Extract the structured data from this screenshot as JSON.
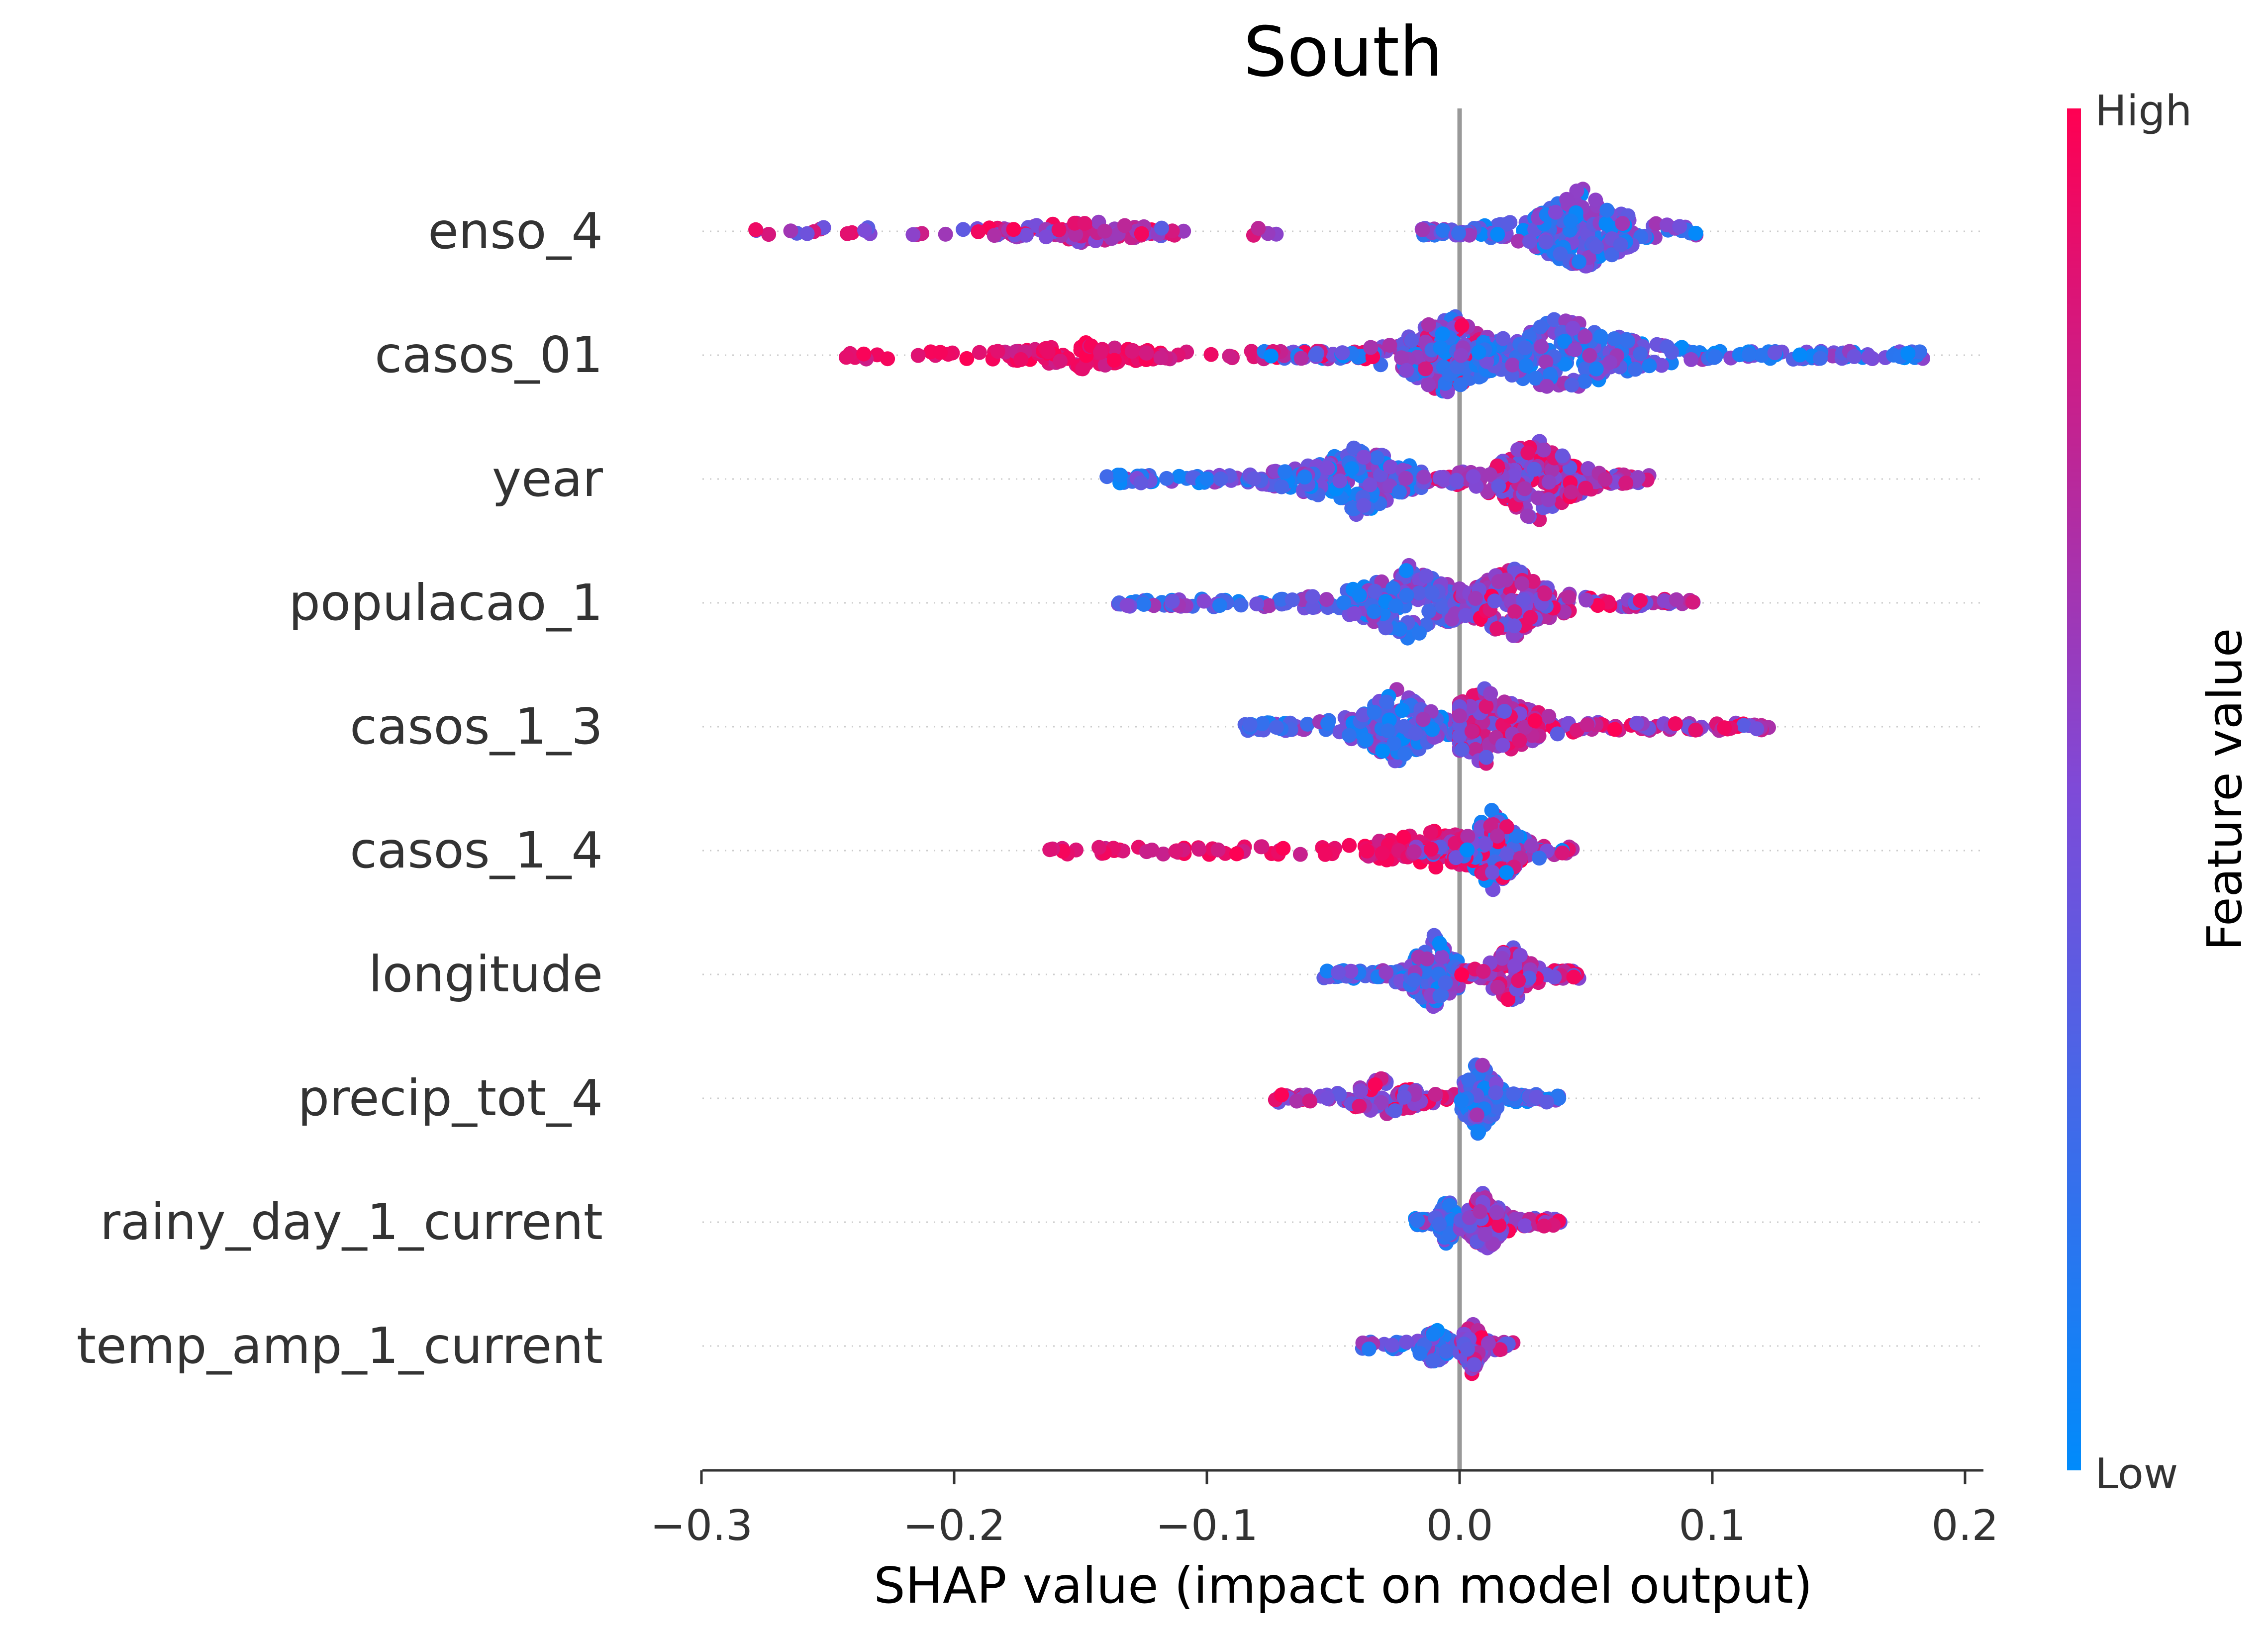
{
  "chart_data": {
    "type": "scatter",
    "subtype": "beeswarm",
    "title": "South",
    "xlabel": "SHAP value (impact on model output)",
    "xlim": [
      -0.303,
      0.207
    ],
    "xticks": [
      -0.3,
      -0.2,
      -0.1,
      0.0,
      0.1,
      0.2
    ],
    "xtick_labels": [
      "−0.3",
      "−0.2",
      "−0.1",
      "0.0",
      "0.1",
      "0.2"
    ],
    "colorbar": {
      "label": "Feature value",
      "high_label": "High",
      "low_label": "Low",
      "high_color": "#ff0052",
      "low_color": "#008bfb"
    },
    "zero_line": true,
    "features": [
      {
        "name": "enso_4",
        "clusters": [
          {
            "min": -0.28,
            "max": -0.072,
            "center": -0.15,
            "color": "mixed_high",
            "density": 0.25
          },
          {
            "min": -0.015,
            "max": 0.094,
            "center": 0.048,
            "color": "mixed_low",
            "density": 1.0
          }
        ]
      },
      {
        "name": "casos_01",
        "clusters": [
          {
            "min": -0.245,
            "max": -0.08,
            "center": -0.15,
            "color": "high",
            "density": 0.3
          },
          {
            "min": -0.08,
            "max": 0.02,
            "center": -0.005,
            "color": "mixed",
            "density": 1.0
          },
          {
            "min": 0.0,
            "max": 0.185,
            "center": 0.04,
            "color": "mixed_low",
            "density": 0.85
          }
        ]
      },
      {
        "name": "year",
        "clusters": [
          {
            "min": -0.14,
            "max": -0.015,
            "center": -0.04,
            "color": "mixed_low",
            "density": 0.8
          },
          {
            "min": -0.015,
            "max": 0.077,
            "center": 0.03,
            "color": "mixed_high",
            "density": 1.0
          }
        ]
      },
      {
        "name": "populacao_1",
        "clusters": [
          {
            "min": -0.138,
            "max": 0.0,
            "center": -0.02,
            "color": "mixed_low",
            "density": 0.8
          },
          {
            "min": 0.0,
            "max": 0.093,
            "center": 0.02,
            "color": "mixed_high",
            "density": 0.85
          }
        ]
      },
      {
        "name": "casos_1_3",
        "clusters": [
          {
            "min": -0.085,
            "max": 0.0,
            "center": -0.025,
            "color": "mixed_low",
            "density": 0.9
          },
          {
            "min": 0.0,
            "max": 0.123,
            "center": 0.01,
            "color": "mixed_high",
            "density": 0.85
          }
        ]
      },
      {
        "name": "casos_1_4",
        "clusters": [
          {
            "min": -0.165,
            "max": 0.0,
            "center": -0.01,
            "color": "high",
            "density": 0.45
          },
          {
            "min": -0.02,
            "max": 0.045,
            "center": 0.013,
            "color": "mixed",
            "density": 0.9
          }
        ]
      },
      {
        "name": "longitude",
        "clusters": [
          {
            "min": -0.055,
            "max": 0.0,
            "center": -0.01,
            "color": "mixed_low",
            "density": 0.85
          },
          {
            "min": 0.0,
            "max": 0.048,
            "center": 0.02,
            "color": "mixed_high",
            "density": 0.7
          }
        ]
      },
      {
        "name": "precip_tot_4",
        "clusters": [
          {
            "min": -0.073,
            "max": 0.0,
            "center": -0.03,
            "color": "mixed_high",
            "density": 0.5
          },
          {
            "min": 0.0,
            "max": 0.04,
            "center": 0.008,
            "color": "mixed_low",
            "density": 0.9
          }
        ]
      },
      {
        "name": "rainy_day_1_current",
        "clusters": [
          {
            "min": -0.018,
            "max": 0.0,
            "center": -0.005,
            "color": "mixed_low",
            "density": 0.6
          },
          {
            "min": 0.0,
            "max": 0.04,
            "center": 0.01,
            "color": "mixed_high",
            "density": 0.75
          }
        ]
      },
      {
        "name": "temp_amp_1_current",
        "clusters": [
          {
            "min": -0.04,
            "max": 0.0,
            "center": -0.01,
            "color": "mixed_low",
            "density": 0.4
          },
          {
            "min": 0.0,
            "max": 0.022,
            "center": 0.005,
            "color": "mixed_high",
            "density": 0.65
          }
        ]
      }
    ]
  }
}
